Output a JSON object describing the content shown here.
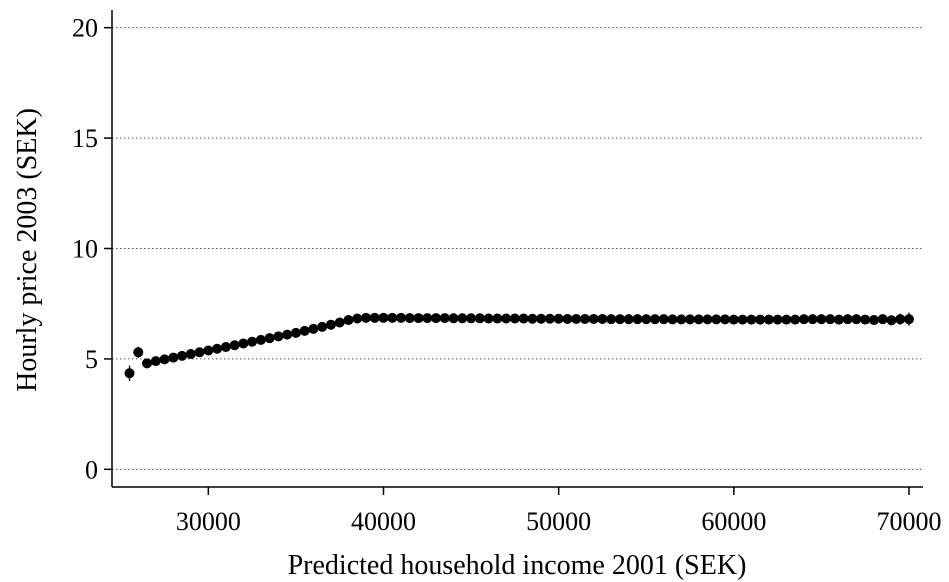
{
  "chart_data": {
    "type": "scatter",
    "title": "",
    "xlabel": "Predicted household income 2001 (SEK)",
    "ylabel": "Hourly price 2003 (SEK)",
    "xlim": [
      24500,
      70800
    ],
    "ylim": [
      -0.8,
      20.8
    ],
    "xticks": [
      30000,
      40000,
      50000,
      60000,
      70000
    ],
    "xtick_labels": [
      "30000",
      "40000",
      "50000",
      "60000",
      "70000"
    ],
    "yticks": [
      0,
      5,
      10,
      15,
      20
    ],
    "ytick_labels": [
      "0",
      "5",
      "10",
      "15",
      "20"
    ],
    "grid": "horizontal dotted",
    "legend": "none",
    "marker_color": "#000000",
    "series": [
      {
        "x": [
          25500,
          26000,
          26500,
          27000,
          27500,
          28000,
          28500,
          29000,
          29500,
          30000,
          30500,
          31000,
          31500,
          32000,
          32500,
          33000,
          33500,
          34000,
          34500,
          35000,
          35500,
          36000,
          36500,
          37000,
          37500,
          38000,
          38500,
          39000,
          39500,
          40000,
          40500,
          41000,
          41500,
          42000,
          42500,
          43000,
          43500,
          44000,
          44500,
          45000,
          45500,
          46000,
          46500,
          47000,
          47500,
          48000,
          48500,
          49000,
          49500,
          50000,
          50500,
          51000,
          51500,
          52000,
          52500,
          53000,
          53500,
          54000,
          54500,
          55000,
          55500,
          56000,
          56500,
          57000,
          57500,
          58000,
          58500,
          59000,
          59500,
          60000,
          60500,
          61000,
          61500,
          62000,
          62500,
          63000,
          63500,
          64000,
          64500,
          65000,
          65500,
          66000,
          66500,
          67000,
          67500,
          68000,
          68500,
          69000,
          69500,
          70000
        ],
        "y": [
          4.35,
          5.3,
          4.8,
          4.9,
          4.98,
          5.06,
          5.14,
          5.22,
          5.3,
          5.38,
          5.46,
          5.54,
          5.62,
          5.7,
          5.78,
          5.86,
          5.94,
          6.02,
          6.1,
          6.18,
          6.27,
          6.36,
          6.45,
          6.55,
          6.65,
          6.76,
          6.83,
          6.86,
          6.86,
          6.86,
          6.86,
          6.86,
          6.85,
          6.85,
          6.85,
          6.85,
          6.85,
          6.84,
          6.84,
          6.84,
          6.84,
          6.83,
          6.83,
          6.83,
          6.83,
          6.83,
          6.82,
          6.82,
          6.82,
          6.82,
          6.81,
          6.81,
          6.81,
          6.81,
          6.81,
          6.8,
          6.8,
          6.8,
          6.8,
          6.8,
          6.8,
          6.8,
          6.79,
          6.79,
          6.79,
          6.79,
          6.79,
          6.79,
          6.79,
          6.78,
          6.78,
          6.78,
          6.78,
          6.78,
          6.78,
          6.78,
          6.78,
          6.8,
          6.8,
          6.8,
          6.8,
          6.78,
          6.8,
          6.8,
          6.78,
          6.76,
          6.8,
          6.75,
          6.8,
          6.8
        ],
        "err": [
          0.35,
          0.25,
          0.15,
          0.1,
          0.08,
          0.08,
          0.08,
          0.08,
          0.08,
          0.08,
          0.08,
          0.08,
          0.08,
          0.08,
          0.08,
          0.08,
          0.08,
          0.08,
          0.08,
          0.08,
          0.08,
          0.08,
          0.08,
          0.08,
          0.08,
          0.08,
          0.08,
          0.08,
          0.08,
          0.08,
          0.08,
          0.08,
          0.08,
          0.08,
          0.08,
          0.08,
          0.08,
          0.08,
          0.08,
          0.08,
          0.08,
          0.08,
          0.08,
          0.08,
          0.08,
          0.08,
          0.08,
          0.08,
          0.08,
          0.08,
          0.08,
          0.08,
          0.08,
          0.08,
          0.08,
          0.08,
          0.08,
          0.08,
          0.08,
          0.08,
          0.08,
          0.08,
          0.08,
          0.08,
          0.08,
          0.08,
          0.08,
          0.08,
          0.08,
          0.08,
          0.08,
          0.08,
          0.08,
          0.08,
          0.08,
          0.08,
          0.08,
          0.1,
          0.1,
          0.1,
          0.1,
          0.1,
          0.12,
          0.12,
          0.15,
          0.18,
          0.2,
          0.22,
          0.25,
          0.3
        ]
      }
    ]
  }
}
